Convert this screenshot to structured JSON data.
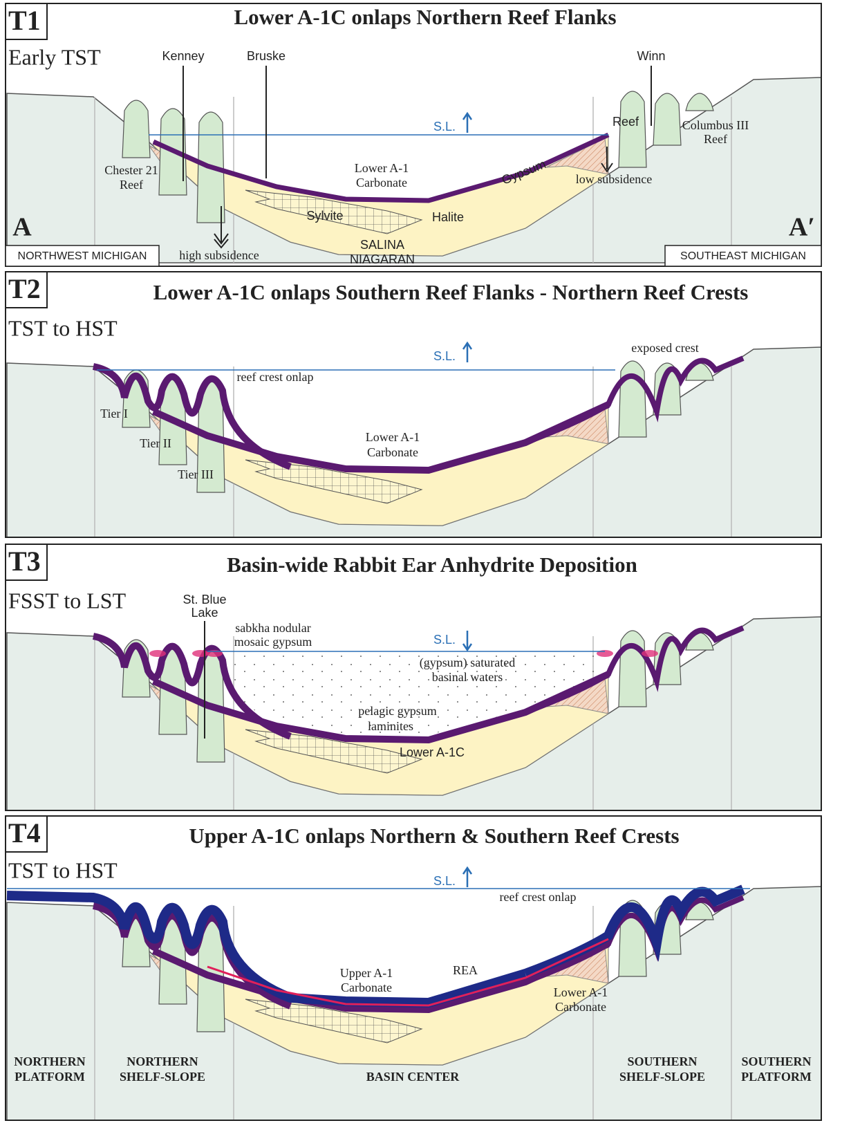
{
  "panels": [
    {
      "label": "T1",
      "title": "Lower A-1C onlaps Northern Reef Flanks",
      "stage": "Early TST",
      "annotations": [
        "Kenney",
        "Bruske",
        "Winn",
        "S.L.",
        "Reef",
        "Columbus III",
        "Reef",
        "Chester 21",
        "Reef",
        "Lower A-1",
        "Carbonate",
        "Gypsum",
        "low subsidence",
        "Sylvite",
        "Halite",
        "SALINA",
        "NIAGARAN",
        "high subsidence",
        "A",
        "A′",
        "NORTHWEST MICHIGAN",
        "SOUTHEAST MICHIGAN"
      ]
    },
    {
      "label": "T2",
      "title": "Lower A-1C onlaps Southern Reef Flanks - Northern Reef Crests",
      "stage": "TST to HST",
      "annotations": [
        "S.L.",
        "exposed crest",
        "reef crest onlap",
        "Tier I",
        "Tier II",
        "Tier III",
        "Lower A-1",
        "Carbonate"
      ]
    },
    {
      "label": "T3",
      "title": "Basin-wide Rabbit Ear Anhydrite Deposition",
      "stage": "FSST to LST",
      "annotations": [
        "St. Blue",
        "Lake",
        "sabkha nodular",
        "mosaic gypsum",
        "S.L.",
        "(gypsum) saturated",
        "basinal waters",
        "pelagic gypsum",
        "laminites",
        "Lower A-1C"
      ]
    },
    {
      "label": "T4",
      "title": "Upper A-1C onlaps Northern & Southern Reef Crests",
      "stage": "TST to HST",
      "annotations": [
        "S.L.",
        "reef crest onlap",
        "Upper A-1",
        "Carbonate",
        "REA",
        "Lower A-1",
        "Carbonate"
      ]
    }
  ],
  "zones": [
    [
      "NORTHERN",
      "PLATFORM"
    ],
    [
      "NORTHERN",
      "SHELF-SLOPE"
    ],
    [
      "BASIN CENTER"
    ],
    [
      "SOUTHERN",
      "SHELF-SLOPE"
    ],
    [
      "SOUTHERN",
      "PLATFORM"
    ]
  ]
}
